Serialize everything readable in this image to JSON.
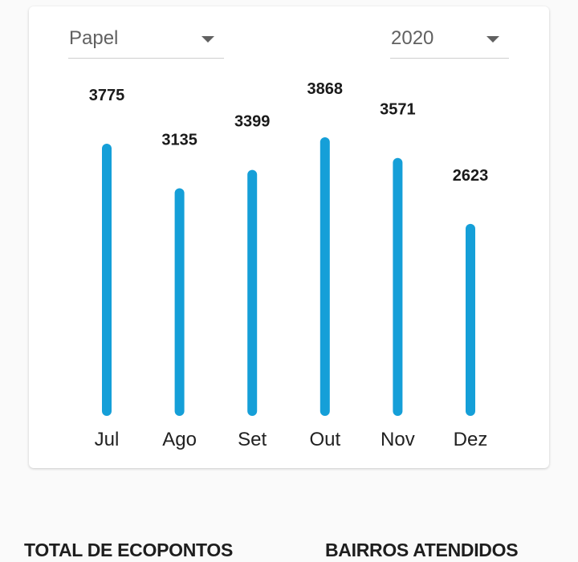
{
  "filters": {
    "material": "Papel",
    "year": "2020"
  },
  "chart_data": {
    "type": "bar",
    "categories": [
      "Jul",
      "Ago",
      "Set",
      "Out",
      "Nov",
      "Dez"
    ],
    "values": [
      3775,
      3135,
      3399,
      3868,
      3571,
      2623
    ],
    "title": "",
    "xlabel": "",
    "ylabel": "",
    "ylim": [
      0,
      3868
    ],
    "grid": false,
    "bar_color": "#159fd8"
  },
  "stats": {
    "total_ecopontos_label": "TOTAL DE ECOPONTOS",
    "bairros_label": "BAIRROS ATENDIDOS"
  }
}
